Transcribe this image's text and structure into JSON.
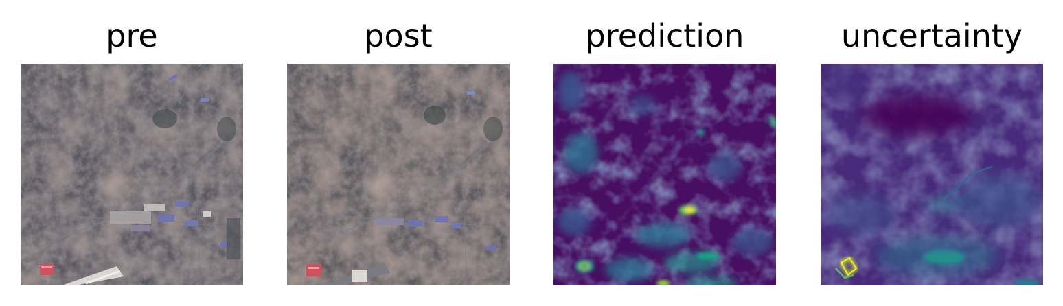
{
  "figure": {
    "panels": [
      {
        "title": "pre",
        "kind": "satellite-image",
        "palette": {
          "base": "#5a5a62",
          "soil": "#7a6358",
          "roof_blue": "#6b74b0",
          "roof_red": "#d8565a",
          "light": "#d9d4cf"
        }
      },
      {
        "title": "post",
        "kind": "satellite-image",
        "palette": {
          "base": "#5e5c62",
          "soil": "#806659",
          "roof_blue": "#6a72b4",
          "roof_red": "#d4505a",
          "light": "#cfcac5"
        }
      },
      {
        "title": "prediction",
        "kind": "heatmap",
        "colormap": "viridis",
        "palette": {
          "low": "#440154",
          "mid": "#3b528b",
          "teal": "#21918c",
          "high": "#5ec962",
          "max": "#fde725"
        }
      },
      {
        "title": "uncertainty",
        "kind": "heatmap",
        "colormap": "viridis",
        "palette": {
          "low": "#440154",
          "mid": "#3b528b",
          "teal": "#21918c",
          "high": "#5ec962",
          "max": "#fde725"
        }
      }
    ]
  }
}
